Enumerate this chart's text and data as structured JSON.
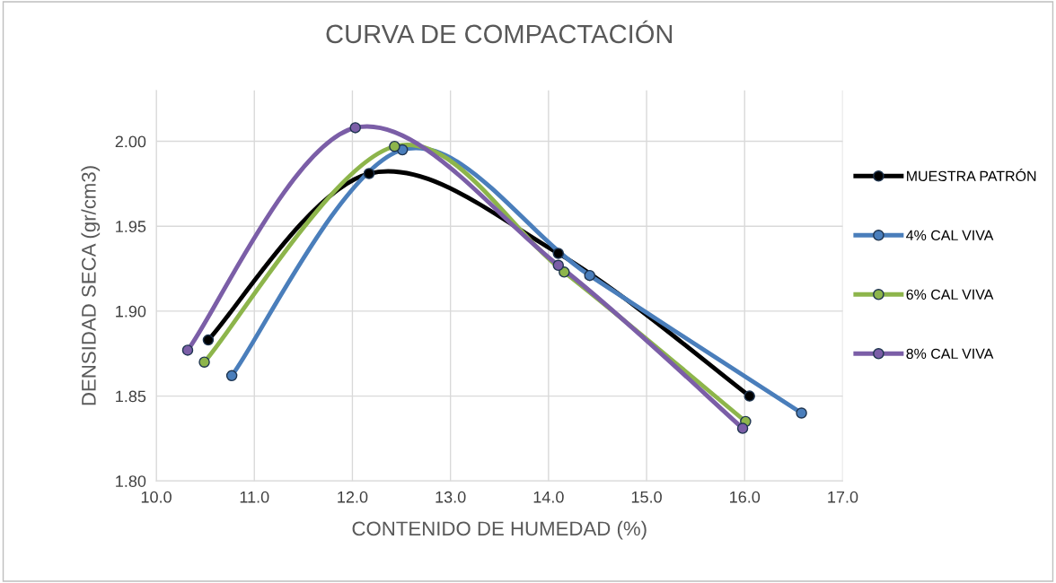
{
  "chart_data": {
    "type": "line",
    "title": "CURVA DE COMPACTACIÓN",
    "xlabel": "CONTENIDO DE HUMEDAD (%)",
    "ylabel": "DENSIDAD SECA (gr/cm3)",
    "xlim": [
      10.0,
      17.0
    ],
    "xticks": [
      {
        "value": 10,
        "label": "10.0"
      },
      {
        "value": 11,
        "label": "11.0"
      },
      {
        "value": 12,
        "label": "12.0"
      },
      {
        "value": 13,
        "label": "13.0"
      },
      {
        "value": 14,
        "label": "14.0"
      },
      {
        "value": 15,
        "label": "15.0"
      },
      {
        "value": 16,
        "label": "16.0"
      },
      {
        "value": 17,
        "label": "17.0"
      }
    ],
    "ylim": [
      1.8,
      2.03
    ],
    "yticks": [
      {
        "value": 1.8,
        "label": "1.80"
      },
      {
        "value": 1.85,
        "label": "1.85"
      },
      {
        "value": 1.9,
        "label": "1.90"
      },
      {
        "value": 1.95,
        "label": "1.95"
      },
      {
        "value": 2.0,
        "label": "2.00"
      }
    ],
    "grid": true,
    "legend": "right",
    "marker": "circle",
    "line_style": "solid",
    "series": [
      {
        "name": "MUESTRA PATRÓN",
        "color": "#000000",
        "x": [
          10.53,
          12.17,
          14.1,
          16.05
        ],
        "values": [
          1.883,
          1.981,
          1.934,
          1.85
        ]
      },
      {
        "name": "4% CAL VIVA",
        "color": "#4a7ebb",
        "x": [
          10.77,
          12.51,
          14.42,
          16.58
        ],
        "values": [
          1.862,
          1.995,
          1.921,
          1.84
        ]
      },
      {
        "name": "6% CAL VIVA",
        "color": "#8db54b",
        "x": [
          10.49,
          12.43,
          14.16,
          16.01
        ],
        "values": [
          1.87,
          1.997,
          1.923,
          1.835
        ]
      },
      {
        "name": "8% CAL VIVA",
        "color": "#7b5ea7",
        "x": [
          10.32,
          12.03,
          14.1,
          15.98
        ],
        "values": [
          1.877,
          2.008,
          1.927,
          1.831
        ]
      }
    ]
  }
}
